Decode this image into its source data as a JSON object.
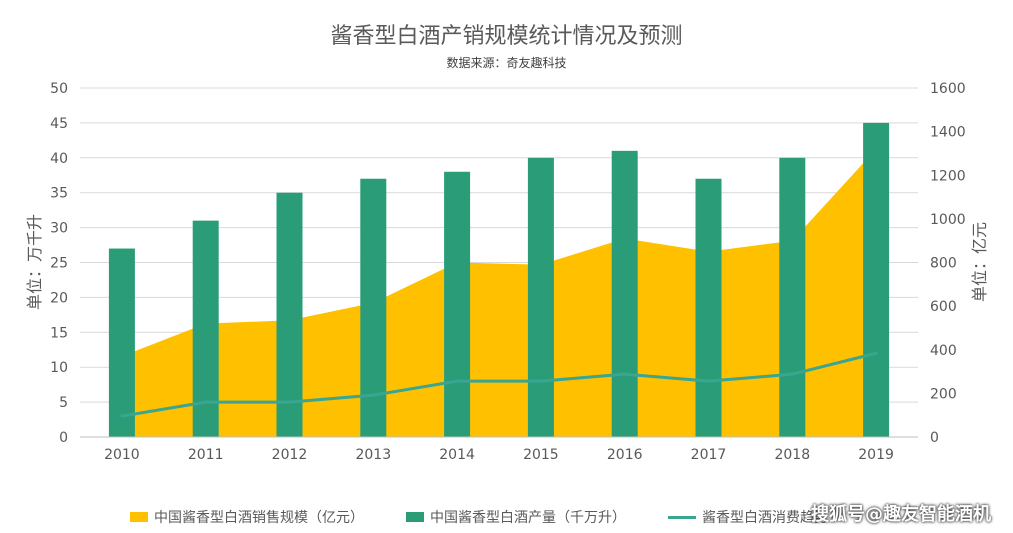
{
  "chart_data": {
    "type": "bar",
    "title": "酱香型白酒产销规模统计情况及预测",
    "subtitle": "数据来源：奇友趣科技",
    "categories": [
      "2010",
      "2011",
      "2012",
      "2013",
      "2014",
      "2015",
      "2016",
      "2017",
      "2018",
      "2019"
    ],
    "y_left": {
      "label": "单位：万千升",
      "ylim": [
        0,
        50
      ],
      "ticks": [
        "0",
        "5",
        "10",
        "15",
        "20",
        "25",
        "30",
        "35",
        "40",
        "45",
        "50"
      ]
    },
    "y_right": {
      "label": "单位：亿元",
      "ylim": [
        0,
        1600
      ],
      "ticks": [
        "0",
        "200",
        "400",
        "600",
        "800",
        "1000",
        "1200",
        "1400",
        "1600"
      ]
    },
    "series": [
      {
        "name": "中国酱香型白酒销售规模（亿元）",
        "type": "area",
        "axis": "right",
        "color": "#ffc000",
        "values": [
          370,
          520,
          535,
          615,
          800,
          790,
          910,
          850,
          900,
          1320
        ]
      },
      {
        "name": "中国酱香型白酒产量（千万升）",
        "type": "bar",
        "axis": "left",
        "color": "#2a9d78",
        "values": [
          27,
          31,
          35,
          37,
          38,
          40,
          41,
          37,
          40,
          45
        ]
      },
      {
        "name": "酱香型白酒消费趋势",
        "type": "line",
        "axis": "left",
        "color": "#3aa590",
        "values": [
          3,
          5,
          5,
          6,
          8,
          8,
          9,
          8,
          9,
          12
        ]
      }
    ],
    "grid": true,
    "legend_position": "bottom"
  },
  "watermark": "搜狐号@趣友智能酒机"
}
